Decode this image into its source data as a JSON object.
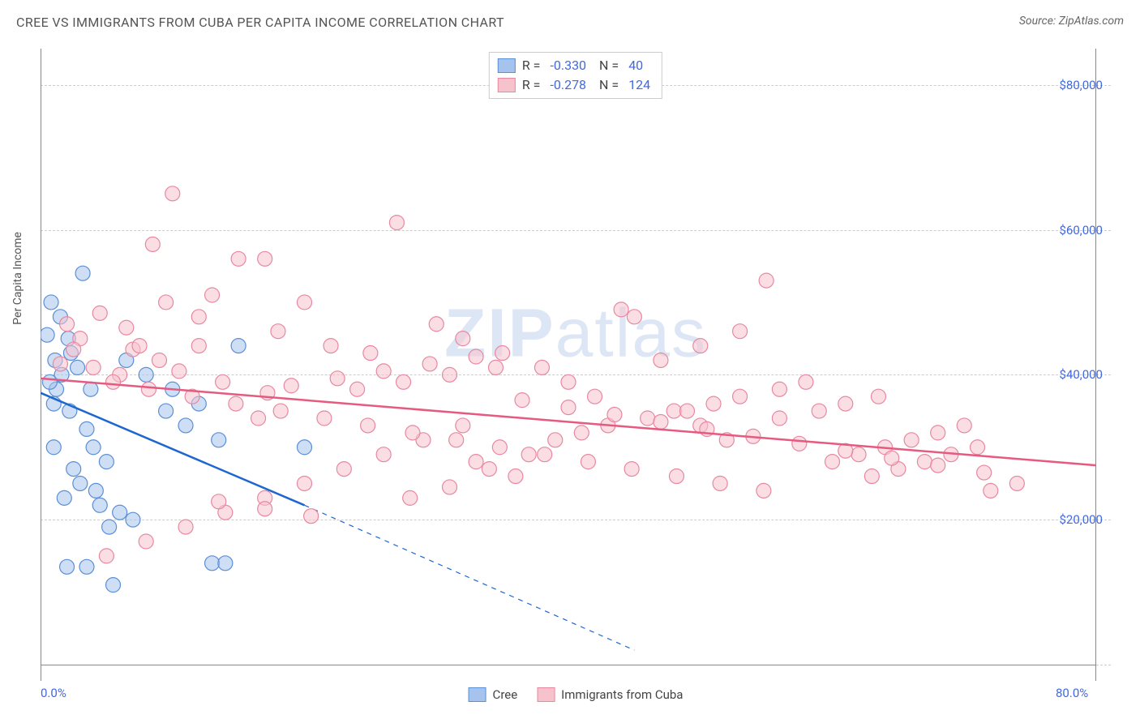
{
  "title": "CREE VS IMMIGRANTS FROM CUBA PER CAPITA INCOME CORRELATION CHART",
  "source_label": "Source: ZipAtlas.com",
  "y_axis_label": "Per Capita Income",
  "watermark": {
    "part1": "ZIP",
    "part2": "atlas"
  },
  "chart": {
    "type": "scatter",
    "background_color": "#ffffff",
    "grid_color": "#cccccc",
    "axis_color": "#888888",
    "text_color": "#555555",
    "value_color": "#4169e1",
    "xlim": [
      0,
      80
    ],
    "ylim": [
      0,
      85000
    ],
    "x_ticks": [
      {
        "value": 0,
        "label": "0.0%"
      },
      {
        "value": 80,
        "label": "80.0%"
      }
    ],
    "y_ticks": [
      {
        "value": 20000,
        "label": "$20,000"
      },
      {
        "value": 40000,
        "label": "$40,000"
      },
      {
        "value": 60000,
        "label": "$60,000"
      },
      {
        "value": 80000,
        "label": "$80,000"
      }
    ],
    "y_gridlines": [
      0,
      20000,
      40000,
      60000,
      80000
    ],
    "marker_radius": 9,
    "marker_opacity": 0.55,
    "marker_stroke_width": 1.2,
    "series": [
      {
        "id": "cree",
        "label": "Cree",
        "fill_color": "#a5c3ec",
        "stroke_color": "#5b8fd6",
        "line_color": "#1e66d0",
        "R": "-0.330",
        "N": "40",
        "trend": {
          "x1": 0,
          "y1": 37500,
          "x2": 20,
          "y2": 22000,
          "extrap_x2": 45,
          "extrap_y2": 2000
        },
        "points": [
          [
            1.2,
            38000
          ],
          [
            1.5,
            48000
          ],
          [
            0.8,
            50000
          ],
          [
            3.2,
            54000
          ],
          [
            1.0,
            36000
          ],
          [
            2.1,
            45000
          ],
          [
            2.8,
            41000
          ],
          [
            1.6,
            40000
          ],
          [
            0.5,
            45500
          ],
          [
            3.5,
            32500
          ],
          [
            2.2,
            35000
          ],
          [
            4.0,
            30000
          ],
          [
            5.0,
            28000
          ],
          [
            1.0,
            30000
          ],
          [
            2.5,
            27000
          ],
          [
            3.0,
            25000
          ],
          [
            4.2,
            24000
          ],
          [
            1.8,
            23000
          ],
          [
            6.0,
            21000
          ],
          [
            7.0,
            20000
          ],
          [
            2.0,
            13500
          ],
          [
            3.5,
            13500
          ],
          [
            5.5,
            11000
          ],
          [
            13.0,
            14000
          ],
          [
            14.0,
            14000
          ],
          [
            12.0,
            36000
          ],
          [
            20.0,
            30000
          ],
          [
            15.0,
            44000
          ],
          [
            10.0,
            38000
          ],
          [
            8.0,
            40000
          ],
          [
            9.5,
            35000
          ],
          [
            11.0,
            33000
          ],
          [
            13.5,
            31000
          ],
          [
            6.5,
            42000
          ],
          [
            4.5,
            22000
          ],
          [
            5.2,
            19000
          ],
          [
            3.8,
            38000
          ],
          [
            2.3,
            43000
          ],
          [
            1.1,
            42000
          ],
          [
            0.7,
            39000
          ]
        ]
      },
      {
        "id": "cuba",
        "label": "Immigrants from Cuba",
        "fill_color": "#f6c3cd",
        "stroke_color": "#e888a0",
        "line_color": "#e55a7e",
        "R": "-0.278",
        "N": "124",
        "trend": {
          "x1": 0,
          "y1": 39500,
          "x2": 80,
          "y2": 27500,
          "extrap_x2": 80,
          "extrap_y2": 27500
        },
        "points": [
          [
            10.0,
            65000
          ],
          [
            8.5,
            58000
          ],
          [
            15.0,
            56000
          ],
          [
            17.0,
            56000
          ],
          [
            27.0,
            61000
          ],
          [
            20.0,
            50000
          ],
          [
            12.0,
            48000
          ],
          [
            18.0,
            46000
          ],
          [
            22.0,
            44000
          ],
          [
            25.0,
            43000
          ],
          [
            30.0,
            47000
          ],
          [
            32.0,
            45000
          ],
          [
            35.0,
            43000
          ],
          [
            38.0,
            41000
          ],
          [
            40.0,
            39000
          ],
          [
            42.0,
            37000
          ],
          [
            45.0,
            48000
          ],
          [
            48.0,
            35000
          ],
          [
            50.0,
            33000
          ],
          [
            52.0,
            31000
          ],
          [
            55.0,
            53000
          ],
          [
            44.0,
            49000
          ],
          [
            33.0,
            28000
          ],
          [
            36.0,
            26000
          ],
          [
            28.0,
            23000
          ],
          [
            31.0,
            24500
          ],
          [
            34.0,
            27000
          ],
          [
            37.0,
            29000
          ],
          [
            39.0,
            31000
          ],
          [
            41.0,
            32000
          ],
          [
            43.0,
            33000
          ],
          [
            46.0,
            34000
          ],
          [
            49.0,
            35000
          ],
          [
            51.0,
            36000
          ],
          [
            53.0,
            37000
          ],
          [
            56.0,
            38000
          ],
          [
            58.0,
            39000
          ],
          [
            60.0,
            28000
          ],
          [
            62.0,
            29000
          ],
          [
            64.0,
            30000
          ],
          [
            66.0,
            31000
          ],
          [
            68.0,
            32000
          ],
          [
            70.0,
            33000
          ],
          [
            72.0,
            24000
          ],
          [
            74.0,
            25000
          ],
          [
            63.0,
            26000
          ],
          [
            65.0,
            27000
          ],
          [
            67.0,
            28000
          ],
          [
            69.0,
            29000
          ],
          [
            71.0,
            30000
          ],
          [
            5.0,
            15000
          ],
          [
            8.0,
            17000
          ],
          [
            11.0,
            19000
          ],
          [
            14.0,
            21000
          ],
          [
            17.0,
            23000
          ],
          [
            20.0,
            25000
          ],
          [
            23.0,
            27000
          ],
          [
            26.0,
            29000
          ],
          [
            29.0,
            31000
          ],
          [
            32.0,
            33000
          ],
          [
            6.0,
            40000
          ],
          [
            9.0,
            42000
          ],
          [
            12.0,
            44000
          ],
          [
            7.0,
            43500
          ],
          [
            4.0,
            41000
          ],
          [
            3.0,
            45000
          ],
          [
            2.0,
            47000
          ],
          [
            5.5,
            39000
          ],
          [
            8.2,
            38000
          ],
          [
            11.5,
            37000
          ],
          [
            14.8,
            36000
          ],
          [
            18.2,
            35000
          ],
          [
            21.5,
            34000
          ],
          [
            24.8,
            33000
          ],
          [
            28.2,
            32000
          ],
          [
            31.5,
            31000
          ],
          [
            34.8,
            30000
          ],
          [
            38.2,
            29000
          ],
          [
            41.5,
            28000
          ],
          [
            44.8,
            27000
          ],
          [
            48.2,
            26000
          ],
          [
            51.5,
            25000
          ],
          [
            54.8,
            24000
          ],
          [
            47.0,
            42000
          ],
          [
            50.0,
            44000
          ],
          [
            53.0,
            46000
          ],
          [
            56.0,
            34000
          ],
          [
            59.0,
            35000
          ],
          [
            61.0,
            36000
          ],
          [
            63.5,
            37000
          ],
          [
            19.0,
            38500
          ],
          [
            22.5,
            39500
          ],
          [
            26.0,
            40500
          ],
          [
            29.5,
            41500
          ],
          [
            33.0,
            42500
          ],
          [
            36.5,
            36500
          ],
          [
            40.0,
            35500
          ],
          [
            43.5,
            34500
          ],
          [
            47.0,
            33500
          ],
          [
            50.5,
            32500
          ],
          [
            54.0,
            31500
          ],
          [
            57.5,
            30500
          ],
          [
            61.0,
            29500
          ],
          [
            64.5,
            28500
          ],
          [
            68.0,
            27500
          ],
          [
            71.5,
            26500
          ],
          [
            13.5,
            22500
          ],
          [
            17.0,
            21500
          ],
          [
            20.5,
            20500
          ],
          [
            24.0,
            38000
          ],
          [
            27.5,
            39000
          ],
          [
            31.0,
            40000
          ],
          [
            34.5,
            41000
          ],
          [
            9.5,
            50000
          ],
          [
            13.0,
            51000
          ],
          [
            16.5,
            34000
          ],
          [
            6.5,
            46500
          ],
          [
            4.5,
            48500
          ],
          [
            2.5,
            43500
          ],
          [
            1.5,
            41500
          ],
          [
            7.5,
            44000
          ],
          [
            10.5,
            40500
          ],
          [
            13.8,
            39000
          ],
          [
            17.2,
            37500
          ]
        ]
      }
    ]
  }
}
